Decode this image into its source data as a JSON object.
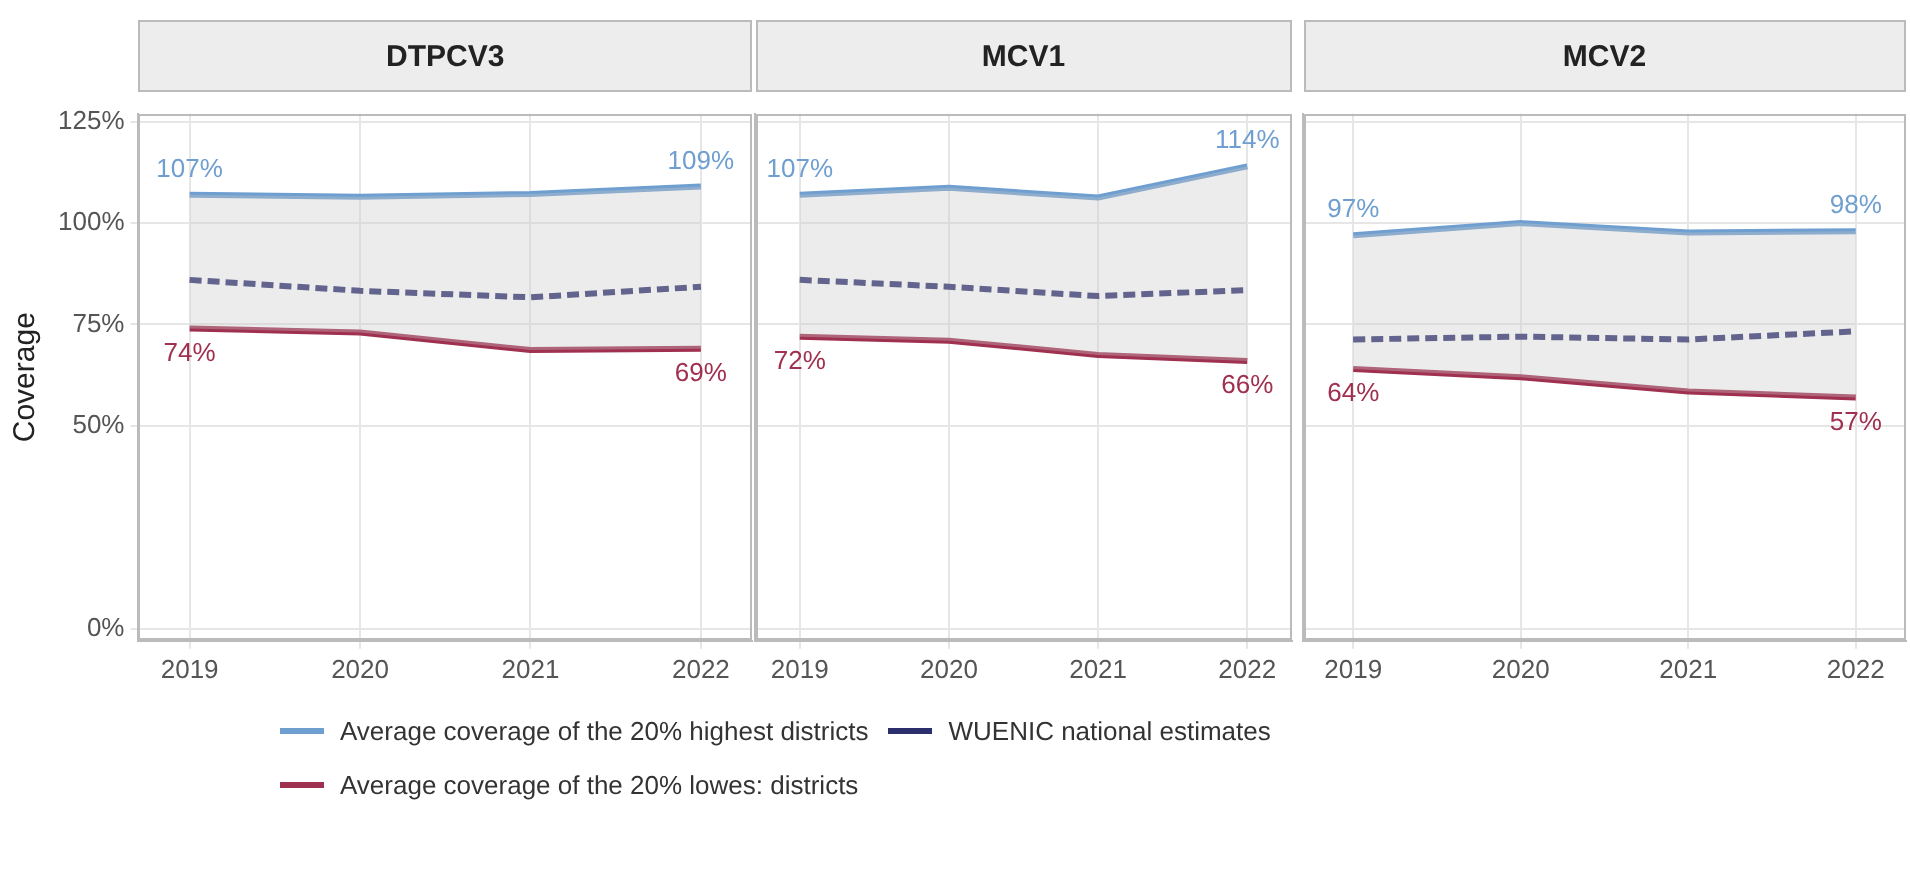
{
  "chart_data": [
    {
      "type": "line",
      "title": "DTPCV3",
      "ylabel": "Coverage",
      "x": [
        2019,
        2020,
        2021,
        2022
      ],
      "xlim": [
        2018.7,
        2022.3
      ],
      "xticks": [
        2019,
        2020,
        2021,
        2022
      ],
      "ylim": [
        -3,
        127
      ],
      "yticks": [
        {
          "value": 0,
          "label": "0%"
        },
        {
          "value": 50,
          "label": "50%"
        },
        {
          "value": 75,
          "label": "75%"
        },
        {
          "value": 100,
          "label": "100%"
        },
        {
          "value": 125,
          "label": "125%"
        }
      ],
      "grid": true,
      "legend": "bottom",
      "marker": "none",
      "series": [
        {
          "name": "Average coverage of the 20% highest districts",
          "color": "#6f9fd0",
          "values": [
            107,
            106.5,
            107.2,
            109
          ],
          "value_labels": [
            "107%",
            null,
            null,
            "109%"
          ]
        },
        {
          "name": "WUENIC national estimates",
          "color": "#2b2f6e",
          "values": [
            86,
            83.3,
            81.7,
            84.3
          ],
          "line_style": "dashed",
          "lower": [
            74,
            73,
            68.7,
            69
          ],
          "upper": [
            107,
            106.5,
            107.2,
            109
          ]
        },
        {
          "name": "Average coverage of the 20% lowes: districts",
          "color": "#a0304f",
          "values": [
            74,
            73,
            68.7,
            69
          ],
          "value_labels": [
            "74%",
            null,
            null,
            "69%"
          ]
        }
      ]
    },
    {
      "type": "line",
      "title": "MCV1",
      "x": [
        2019,
        2020,
        2021,
        2022
      ],
      "xlim": [
        2018.7,
        2022.3
      ],
      "xticks": [
        2019,
        2020,
        2021,
        2022
      ],
      "ylim": [
        -3,
        127
      ],
      "yticks": [
        0,
        50,
        75,
        100,
        125
      ],
      "tick_labels": "x",
      "grid": true,
      "marker": "none",
      "series": [
        {
          "color": "#6f9fd0",
          "values": [
            107,
            108.7,
            106.3,
            114
          ],
          "value_labels": [
            "107%",
            null,
            null,
            "114%"
          ]
        },
        {
          "color": "#2b2f6e",
          "values": [
            86,
            84.3,
            82,
            83.5
          ],
          "line_style": "dashed",
          "lower": [
            72,
            71,
            67.5,
            66
          ],
          "upper": [
            107,
            108.7,
            106.3,
            114
          ]
        },
        {
          "color": "#a0304f",
          "values": [
            72,
            71,
            67.5,
            66
          ],
          "value_labels": [
            "72%",
            null,
            null,
            "66%"
          ]
        }
      ]
    },
    {
      "type": "line",
      "title": "MCV2",
      "x": [
        2019,
        2020,
        2021,
        2022
      ],
      "xlim": [
        2018.7,
        2022.3
      ],
      "xticks": [
        2019,
        2020,
        2021,
        2022
      ],
      "ylim": [
        -3,
        127
      ],
      "yticks": [
        0,
        50,
        75,
        100,
        125
      ],
      "tick_labels": "x",
      "grid": true,
      "marker": "none",
      "series": [
        {
          "color": "#6f9fd0",
          "values": [
            97,
            100,
            97.7,
            98
          ],
          "value_labels": [
            "97%",
            null,
            null,
            "98%"
          ]
        },
        {
          "color": "#2b2f6e",
          "values": [
            71.3,
            72,
            71.3,
            73.3
          ],
          "line_style": "dashed",
          "lower": [
            64,
            62,
            58.5,
            57
          ],
          "upper": [
            97,
            100,
            97.7,
            98
          ]
        },
        {
          "color": "#a0304f",
          "values": [
            64,
            62,
            58.5,
            57
          ],
          "value_labels": [
            "64%",
            null,
            null,
            "57%"
          ]
        }
      ]
    }
  ]
}
